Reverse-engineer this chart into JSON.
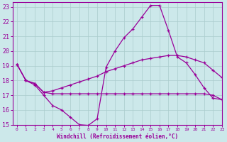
{
  "xlabel": "Windchill (Refroidissement éolien,°C)",
  "background_color": "#cce8ea",
  "grid_color": "#aacccc",
  "line_color": "#990099",
  "xlim": [
    -0.5,
    23
  ],
  "ylim": [
    15,
    23.3
  ],
  "yticks": [
    15,
    16,
    17,
    18,
    19,
    20,
    21,
    22,
    23
  ],
  "xticks": [
    0,
    1,
    2,
    3,
    4,
    5,
    6,
    7,
    8,
    9,
    10,
    11,
    12,
    13,
    14,
    15,
    16,
    17,
    18,
    19,
    20,
    21,
    22,
    23
  ],
  "curve1_x": [
    0,
    1,
    2,
    3,
    4,
    5,
    6,
    7,
    8,
    9,
    10,
    11,
    12,
    13,
    14,
    15,
    16,
    17,
    18,
    19,
    20,
    21,
    22,
    23
  ],
  "curve1_y": [
    19.1,
    18.0,
    17.7,
    17.0,
    16.3,
    16.0,
    15.5,
    15.0,
    14.95,
    15.4,
    18.9,
    20.0,
    20.9,
    21.5,
    22.3,
    23.1,
    23.1,
    21.4,
    19.6,
    19.2,
    18.4,
    17.5,
    16.8,
    16.7
  ],
  "curve2_x": [
    0,
    1,
    2,
    3,
    4,
    5,
    6,
    7,
    8,
    9,
    10,
    11,
    12,
    13,
    14,
    15,
    16,
    17,
    18,
    19,
    20,
    21,
    22,
    23
  ],
  "curve2_y": [
    19.1,
    18.0,
    17.8,
    17.2,
    17.1,
    17.1,
    17.1,
    17.1,
    17.1,
    17.1,
    17.1,
    17.1,
    17.1,
    17.1,
    17.1,
    17.1,
    17.1,
    17.1,
    17.1,
    17.1,
    17.1,
    17.1,
    17.0,
    16.7
  ],
  "curve3_x": [
    0,
    1,
    2,
    3,
    4,
    5,
    6,
    7,
    8,
    9,
    10,
    11,
    12,
    13,
    14,
    15,
    16,
    17,
    18,
    19,
    20,
    21,
    22,
    23
  ],
  "curve3_y": [
    19.1,
    18.0,
    17.8,
    17.2,
    17.3,
    17.5,
    17.7,
    17.9,
    18.1,
    18.3,
    18.6,
    18.8,
    19.0,
    19.2,
    19.4,
    19.5,
    19.6,
    19.7,
    19.7,
    19.6,
    19.4,
    19.2,
    18.7,
    18.2
  ]
}
